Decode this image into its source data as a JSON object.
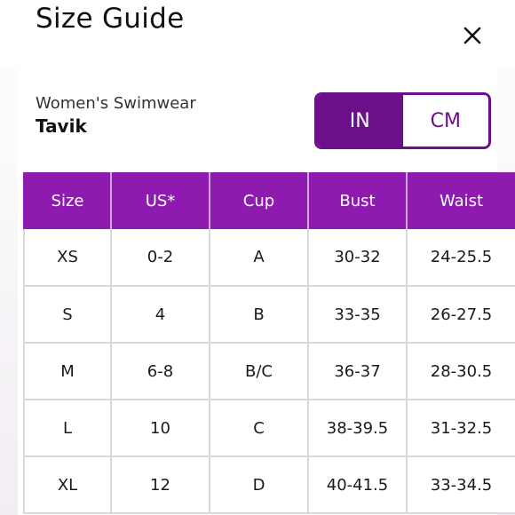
{
  "header": {
    "title": "Size Guide"
  },
  "product": {
    "category": "Women's Swimwear",
    "name": "Tavik"
  },
  "unit_toggle": {
    "options": [
      "IN",
      "CM"
    ],
    "selected": "IN"
  },
  "colors": {
    "accent": "#8e1ab0",
    "toggle_accent": "#6b0f8a"
  },
  "icons": {
    "close": "close-icon"
  },
  "table": {
    "columns": [
      "Size",
      "US*",
      "Cup",
      "Bust",
      "Waist"
    ],
    "rows": [
      [
        "XS",
        "0-2",
        "A",
        "30-32",
        "24-25.5"
      ],
      [
        "S",
        "4",
        "B",
        "33-35",
        "26-27.5"
      ],
      [
        "M",
        "6-8",
        "B/C",
        "36-37",
        "28-30.5"
      ],
      [
        "L",
        "10",
        "C",
        "38-39.5",
        "31-32.5"
      ],
      [
        "XL",
        "12",
        "D",
        "40-41.5",
        "33-34.5"
      ]
    ]
  }
}
